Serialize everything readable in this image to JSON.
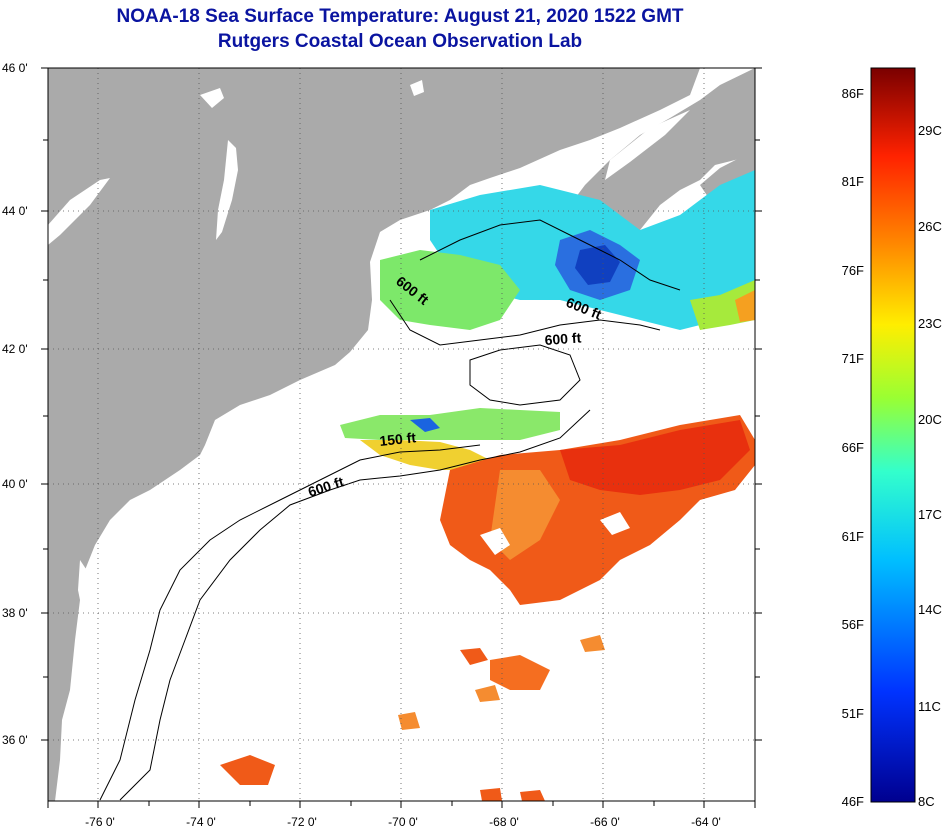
{
  "title": {
    "line1": "NOAA-18 Sea Surface Temperature:  August 21, 2020 1522 GMT",
    "line2": "Rutgers Coastal Ocean Observation Lab"
  },
  "map": {
    "lon_range": [
      -77,
      -63
    ],
    "lat_range": [
      35,
      46
    ],
    "lon_ticks": [
      "-76 0'",
      "-74 0'",
      "-72 0'",
      "-70 0'",
      "-68 0'",
      "-66 0'",
      "-64 0'"
    ],
    "lat_ticks": [
      "46 0'",
      "44 0'",
      "42 0'",
      "40 0'",
      "38 0'",
      "36 0'"
    ],
    "contour_labels": [
      "600 ft",
      "600 ft",
      "600 ft",
      "150 ft",
      "600 ft"
    ],
    "colors": {
      "land": "#aaaaaa",
      "ocean": "#ffffff",
      "title": "#0a14a0"
    }
  },
  "colorbar": {
    "fahrenheit": [
      "86F",
      "81F",
      "76F",
      "71F",
      "66F",
      "61F",
      "56F",
      "51F",
      "46F"
    ],
    "celsius": [
      "29C",
      "26C",
      "23C",
      "20C",
      "17C",
      "14C",
      "11C",
      "8C"
    ]
  }
}
